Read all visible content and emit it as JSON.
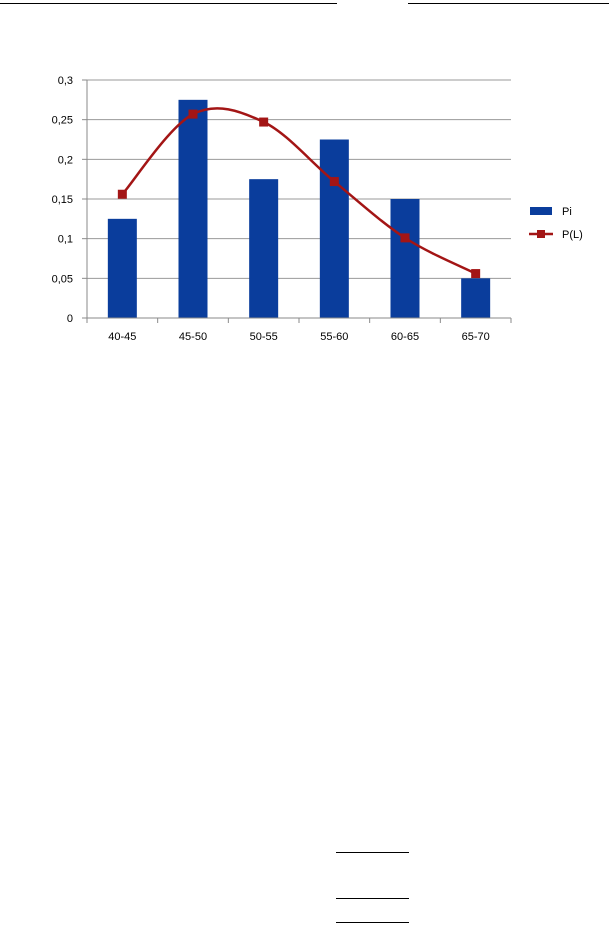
{
  "chart_data": {
    "type": "bar",
    "title": "",
    "xlabel": "",
    "ylabel": "",
    "categories": [
      "40-45",
      "45-50",
      "50-55",
      "55-60",
      "60-65",
      "65-70"
    ],
    "ylim": [
      0,
      0.3
    ],
    "yticks": [
      0,
      0.05,
      0.1,
      0.15,
      0.2,
      0.25,
      0.3
    ],
    "ytick_labels": [
      "0",
      "0,05",
      "0,1",
      "0,15",
      "0,2",
      "0,25",
      "0,3"
    ],
    "grid": true,
    "legend_position": "right",
    "series": [
      {
        "name": "Pi",
        "type": "bar",
        "color": "#0a3d9c",
        "values": [
          0.125,
          0.275,
          0.175,
          0.225,
          0.15,
          0.05
        ]
      },
      {
        "name": "P(L)",
        "type": "line",
        "smooth": true,
        "marker": "square",
        "color": "#a31515",
        "values": [
          0.156,
          0.257,
          0.247,
          0.172,
          0.101,
          0.056
        ]
      }
    ]
  }
}
